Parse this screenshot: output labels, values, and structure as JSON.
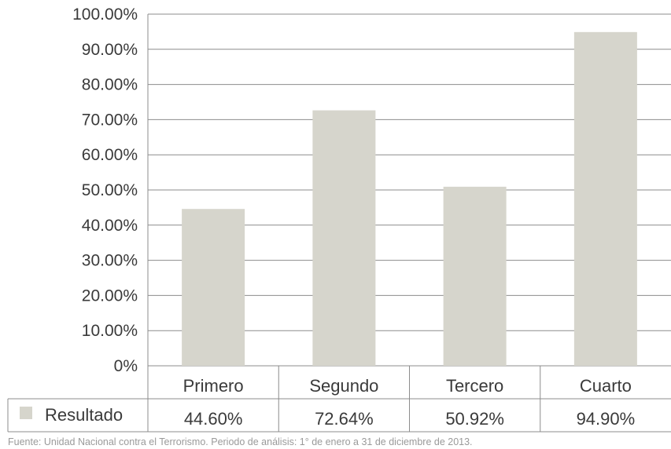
{
  "chart_data": {
    "type": "bar",
    "categories": [
      "Primero",
      "Segundo",
      "Tercero",
      "Cuarto"
    ],
    "series": [
      {
        "name": "Resultado",
        "values": [
          44.6,
          72.64,
          50.92,
          94.9
        ],
        "color": "#d6d5cc"
      }
    ],
    "data_labels": [
      "44.60%",
      "72.64%",
      "50.92%",
      "94.90%"
    ],
    "y_ticks": [
      "0%",
      "10.00%",
      "20.00%",
      "30.00%",
      "40.00%",
      "50.00%",
      "60.00%",
      "70.00%",
      "80.00%",
      "90.00%",
      "100.00%"
    ],
    "ylim": [
      0,
      100
    ],
    "grid": true,
    "legend_position": "bottom-left-data-table",
    "title": "",
    "xlabel": "",
    "ylabel": ""
  },
  "source_note": "Fuente: Unidad Nacional contra el Terrorismo. Periodo de análisis: 1° de enero a 31 de diciembre de 2013."
}
